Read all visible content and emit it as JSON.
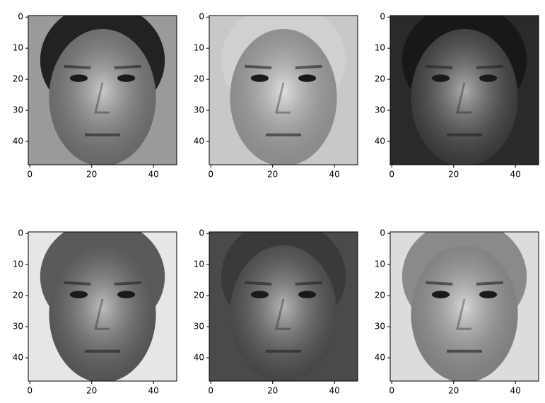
{
  "chart_data": [
    {
      "type": "image",
      "xlim": [
        -0.5,
        47.5
      ],
      "ylim": [
        47.5,
        -0.5
      ],
      "xticks": [
        0,
        20,
        40
      ],
      "yticks": [
        0,
        10,
        20,
        30,
        40
      ]
    },
    {
      "type": "image",
      "xlim": [
        -0.5,
        47.5
      ],
      "ylim": [
        47.5,
        -0.5
      ],
      "xticks": [
        0,
        20,
        40
      ],
      "yticks": [
        0,
        10,
        20,
        30,
        40
      ]
    },
    {
      "type": "image",
      "xlim": [
        -0.5,
        47.5
      ],
      "ylim": [
        47.5,
        -0.5
      ],
      "xticks": [
        0,
        20,
        40
      ],
      "yticks": [
        0,
        10,
        20,
        30,
        40
      ]
    },
    {
      "type": "image",
      "xlim": [
        -0.5,
        47.5
      ],
      "ylim": [
        47.5,
        -0.5
      ],
      "xticks": [
        0,
        20,
        40
      ],
      "yticks": [
        0,
        10,
        20,
        30,
        40
      ]
    },
    {
      "type": "image",
      "xlim": [
        -0.5,
        47.5
      ],
      "ylim": [
        47.5,
        -0.5
      ],
      "xticks": [
        0,
        20,
        40
      ],
      "yticks": [
        0,
        10,
        20,
        30,
        40
      ]
    },
    {
      "type": "image",
      "xlim": [
        -0.5,
        47.5
      ],
      "ylim": [
        47.5,
        -0.5
      ],
      "xticks": [
        0,
        20,
        40
      ],
      "yticks": [
        0,
        10,
        20,
        30,
        40
      ]
    }
  ]
}
